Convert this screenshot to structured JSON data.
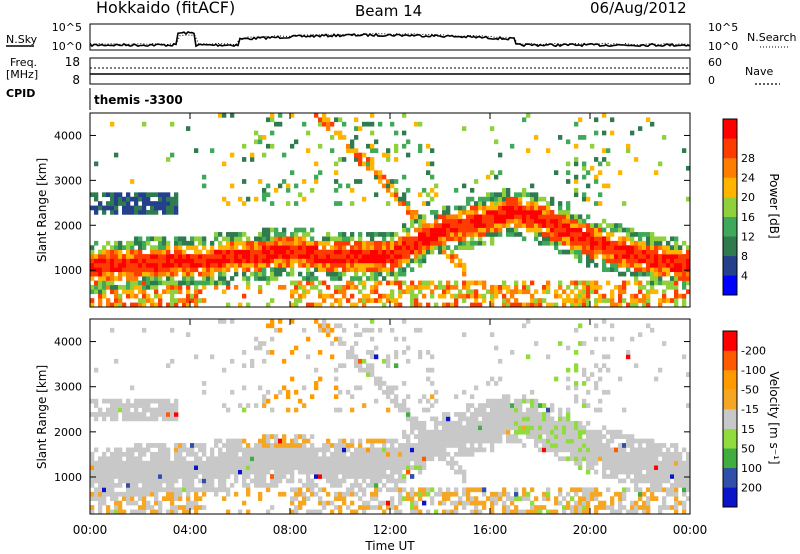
{
  "header": {
    "site": "Hokkaido (fitACF)",
    "beam": "Beam 14",
    "date": "06/Aug/2012"
  },
  "sky_panel": {
    "label_left": "N.Sky",
    "label_right": "N.Search",
    "left_ticks": [
      "10^5",
      "10^0"
    ],
    "right_ticks": [
      "10^5",
      "10^0"
    ]
  },
  "freq_panel": {
    "label_left_1": "Freq.",
    "label_left_2": "[MHz]",
    "label_right": "Nave",
    "left_ticks": [
      "18",
      "8"
    ],
    "right_ticks": [
      "60",
      "0"
    ]
  },
  "cpid": {
    "label": "CPID",
    "value": "themis -3300"
  },
  "colors": {
    "power": [
      "#0000ff",
      "#24408c",
      "#2f7a4f",
      "#3fa85a",
      "#8fd03c",
      "#ffb400",
      "#ff7d00",
      "#ff3c00",
      "#ff0000"
    ],
    "velocity": [
      "#ff0000",
      "#ff5a00",
      "#ff9a00",
      "#f5a623",
      "#c8c8c8",
      "#8fdc3c",
      "#3fae3f",
      "#2f4fa8",
      "#0a14c8"
    ]
  },
  "chart_data": [
    {
      "type": "heatmap",
      "title": "",
      "ylabel": "Slant Range [km]",
      "xlabel": "",
      "xlim": [
        "00:00",
        "24:00"
      ],
      "ylim": [
        180,
        4500
      ],
      "yticks": [
        "1000",
        "2000",
        "3000",
        "4000"
      ],
      "colorbar_label": "Power [dB]",
      "colorbar_ticks": [
        "4",
        "8",
        "12",
        "16",
        "20",
        "24",
        "28"
      ],
      "features": [
        {
          "name": "main echo band",
          "x_hours": [
            0,
            2,
            4,
            6,
            8,
            10,
            12,
            13,
            14,
            16,
            17,
            18,
            19,
            20,
            22,
            24
          ],
          "range_km": [
            1050,
            1150,
            1200,
            1300,
            1400,
            1300,
            1300,
            1600,
            1900,
            2150,
            2300,
            2150,
            1900,
            1650,
            1300,
            1100
          ]
        }
      ]
    },
    {
      "type": "heatmap",
      "title": "",
      "ylabel": "Slant Range [km]",
      "xlabel": "Time UT",
      "xticks": [
        "00:00",
        "04:00",
        "08:00",
        "12:00",
        "16:00",
        "20:00",
        "00:00"
      ],
      "yticks": [
        "1000",
        "2000",
        "3000",
        "4000"
      ],
      "colorbar_label": "Velocity [m s⁻¹]",
      "colorbar_ticks": [
        "200",
        "100",
        "50",
        "15",
        "-15",
        "-50",
        "-100",
        "-200"
      ]
    }
  ]
}
